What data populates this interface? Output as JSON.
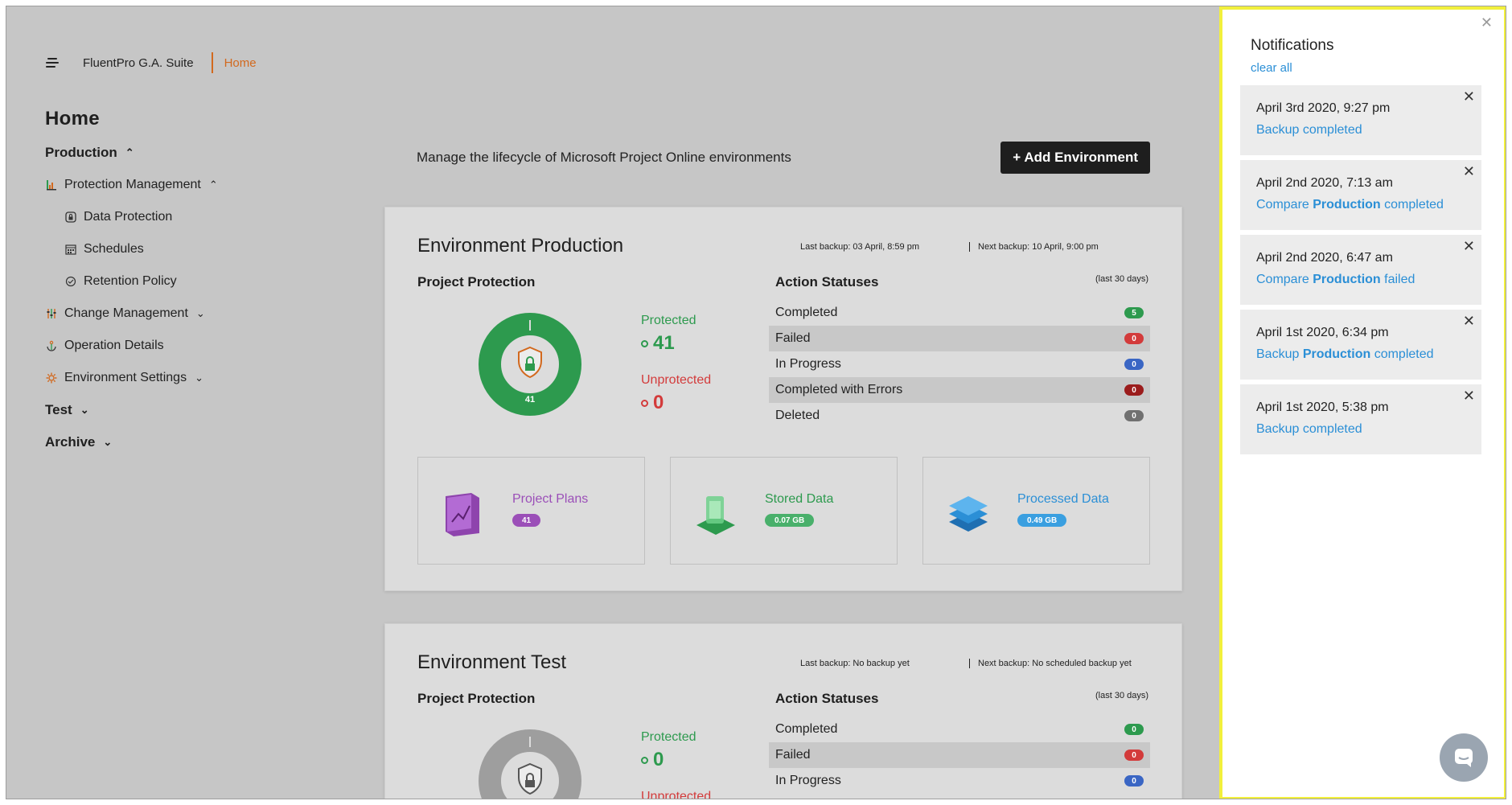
{
  "header": {
    "app_name": "FluentPro G.A. Suite",
    "breadcrumb": "Home"
  },
  "sidebar": {
    "title": "Home",
    "items": [
      {
        "label": "Production",
        "level": 0,
        "chevron": "up"
      },
      {
        "label": "Protection Management",
        "level": 1,
        "chevron": "up",
        "icon": "bar-chart-icon"
      },
      {
        "label": "Data Protection",
        "level": 2,
        "icon": "lock-icon"
      },
      {
        "label": "Schedules",
        "level": 2,
        "icon": "calendar-icon"
      },
      {
        "label": "Retention Policy",
        "level": 2,
        "icon": "retention-icon"
      },
      {
        "label": "Change Management",
        "level": 1,
        "chevron": "down",
        "icon": "sliders-icon"
      },
      {
        "label": "Operation Details",
        "level": 1,
        "icon": "anchor-icon"
      },
      {
        "label": "Environment Settings",
        "level": 1,
        "chevron": "down",
        "icon": "gear-icon"
      },
      {
        "label": "Test",
        "level": 0,
        "chevron": "down"
      },
      {
        "label": "Archive",
        "level": 0,
        "chevron": "down"
      }
    ]
  },
  "main": {
    "description": "Manage the lifecycle of Microsoft Project Online environments",
    "add_button": "+ Add Environment"
  },
  "env_production": {
    "title": "Environment Production",
    "last_backup": "Last backup: 03 April, 8:59 pm",
    "next_backup": "Next backup: 10 April, 9:00 pm",
    "project_protection_title": "Project Protection",
    "donut_center_value": "41",
    "protected_label": "Protected",
    "protected_value": "41",
    "unprotected_label": "Unprotected",
    "unprotected_value": "0",
    "action_statuses_title": "Action Statuses",
    "action_statuses_note": "(last 30 days)",
    "statuses": [
      {
        "label": "Completed",
        "count": "5",
        "color": "#2d9a4e"
      },
      {
        "label": "Failed",
        "count": "0",
        "color": "#d33b3b"
      },
      {
        "label": "In Progress",
        "count": "0",
        "color": "#3a66c4"
      },
      {
        "label": "Completed with Errors",
        "count": "0",
        "color": "#9b1c1c"
      },
      {
        "label": "Deleted",
        "count": "0",
        "color": "#707070"
      }
    ],
    "tiles": [
      {
        "label": "Project Plans",
        "value": "41",
        "color": "#9b4fb8"
      },
      {
        "label": "Stored Data",
        "value": "0.07 GB",
        "color": "#2d9a4e"
      },
      {
        "label": "Processed Data",
        "value": "0.49 GB",
        "color": "#2b8fd6"
      }
    ]
  },
  "env_test": {
    "title": "Environment Test",
    "last_backup": "Last backup: No backup yet",
    "next_backup": "Next backup: No scheduled backup yet",
    "project_protection_title": "Project Protection",
    "protected_label": "Protected",
    "protected_value": "0",
    "unprotected_label": "Unprotected",
    "action_statuses_title": "Action Statuses",
    "action_statuses_note": "(last 30 days)",
    "statuses": [
      {
        "label": "Completed",
        "count": "0",
        "color": "#2d9a4e"
      },
      {
        "label": "Failed",
        "count": "0",
        "color": "#d33b3b"
      },
      {
        "label": "In Progress",
        "count": "0",
        "color": "#3a66c4"
      }
    ]
  },
  "notifications": {
    "title": "Notifications",
    "clear_all": "clear all",
    "items": [
      {
        "time": "April 3rd 2020, 9:27 pm",
        "msg_pre": "Backup completed",
        "msg_bold": "",
        "msg_post": ""
      },
      {
        "time": "April 2nd 2020, 7:13 am",
        "msg_pre": "Compare ",
        "msg_bold": "Production",
        "msg_post": " completed"
      },
      {
        "time": "April 2nd 2020, 6:47 am",
        "msg_pre": "Compare ",
        "msg_bold": "Production",
        "msg_post": " failed"
      },
      {
        "time": "April 1st 2020, 6:34 pm",
        "msg_pre": "Backup ",
        "msg_bold": "Production",
        "msg_post": " completed"
      },
      {
        "time": "April 1st 2020, 5:38 pm",
        "msg_pre": "Backup completed",
        "msg_bold": "",
        "msg_post": ""
      }
    ]
  },
  "colors": {
    "accent": "#d2691e",
    "link": "#2b8fd6",
    "protected": "#2d9a4e",
    "unprotected": "#d33b3b",
    "panel_border": "#f2f03c"
  }
}
